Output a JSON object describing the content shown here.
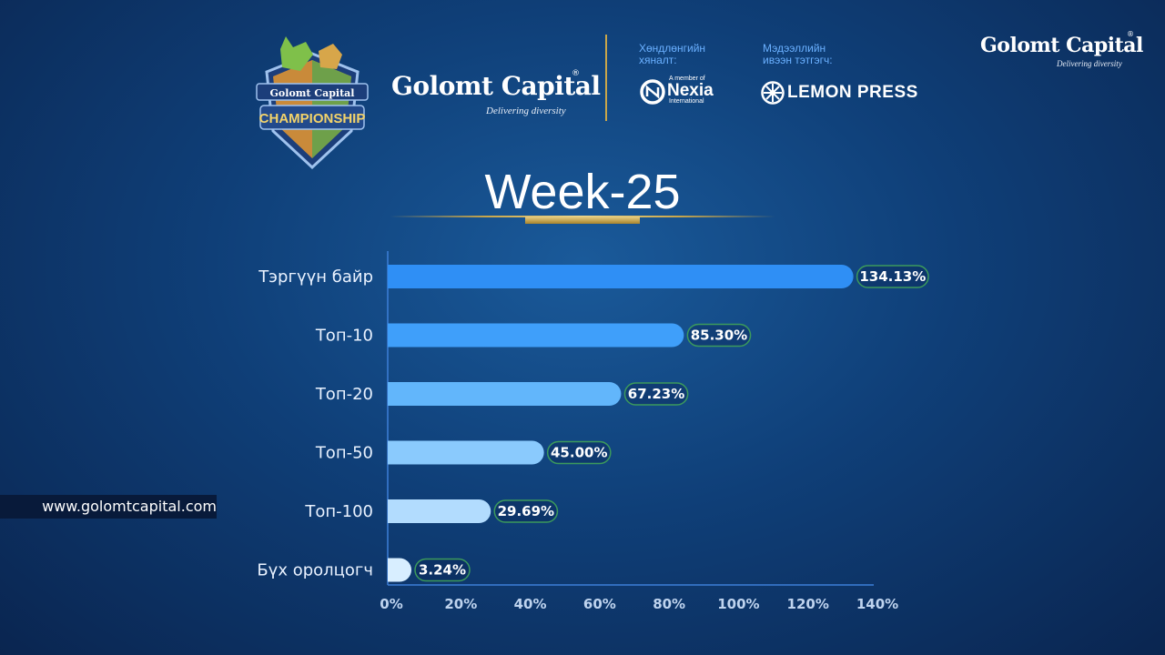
{
  "header": {
    "badge": {
      "brand": "Golomt Capital",
      "title": "CHAMPIONSHIP"
    },
    "brand": {
      "name": "Golomt Capital",
      "registered": "®",
      "tagline": "Delivering diversity"
    },
    "sponsor_audit": {
      "label_line1": "Хөндлөнгийн",
      "label_line2": "хяналт:",
      "small": "A member of",
      "name": "Nexia",
      "sub": "International"
    },
    "sponsor_media": {
      "label_line1": "Мэдээллийн",
      "label_line2": "ивээн тэтгэгч:",
      "name": "LEMON PRESS"
    },
    "brand_top_right": {
      "name": "Golomt Capital",
      "registered": "®",
      "tagline": "Delivering diversity"
    }
  },
  "title": "Week-25",
  "website": "www.golomtcapital.com",
  "colors": {
    "bar_1": "#2f8ff5",
    "bar_2": "#3f9ffa",
    "bar_3": "#62b6fb",
    "bar_4": "#8acafd",
    "bar_5": "#b2dcfe",
    "bar_6": "#d8eeff",
    "label_border": "#3c9a5c",
    "axis": "#3d7fd8",
    "accent_gold": "#c9a64a"
  },
  "chart_data": {
    "type": "bar",
    "orientation": "horizontal",
    "categories": [
      "Тэргүүн байр",
      "Топ-10",
      "Топ-20",
      "Топ-50",
      "Топ-100",
      "Бүх оролцогч"
    ],
    "values": [
      134.13,
      85.3,
      67.23,
      45.0,
      29.69,
      3.24
    ],
    "value_labels": [
      "134.13%",
      "85.30%",
      "67.23%",
      "45.00%",
      "29.69%",
      "3.24%"
    ],
    "xlim": [
      0,
      140
    ],
    "xticks": [
      "0%",
      "20%",
      "40%",
      "60%",
      "80%",
      "100%",
      "120%",
      "140%"
    ],
    "title": "Week-25",
    "xlabel": "",
    "ylabel": "",
    "grid": false
  }
}
